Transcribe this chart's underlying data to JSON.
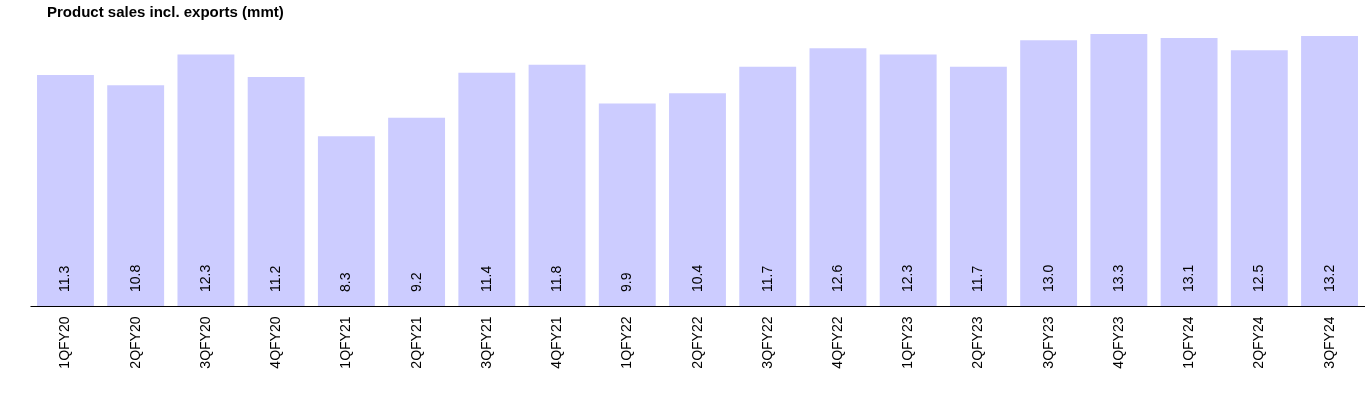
{
  "chart_data": {
    "type": "bar",
    "title": "Product sales incl. exports (mmt)",
    "categories": [
      "1QFY20",
      "2QFY20",
      "3QFY20",
      "4QFY20",
      "1QFY21",
      "2QFY21",
      "3QFY21",
      "4QFY21",
      "1QFY22",
      "2QFY22",
      "3QFY22",
      "4QFY22",
      "1QFY23",
      "2QFY23",
      "3QFY23",
      "4QFY23",
      "1QFY24",
      "2QFY24",
      "3QFY24"
    ],
    "values": [
      11.3,
      10.8,
      12.3,
      11.2,
      8.3,
      9.2,
      11.4,
      11.8,
      9.9,
      10.4,
      11.7,
      12.6,
      12.3,
      11.7,
      13.0,
      13.3,
      13.1,
      12.5,
      13.2
    ],
    "value_labels": [
      "11.3",
      "10.8",
      "12.3",
      "11.2",
      "8.3",
      "9.2",
      "11.4",
      "11.8",
      "9.9",
      "10.4",
      "11.7",
      "12.6",
      "12.3",
      "11.7",
      "13.0",
      "13.3",
      "13.1",
      "12.5",
      "13.2"
    ],
    "color": "#ccccff",
    "grid": false
  }
}
